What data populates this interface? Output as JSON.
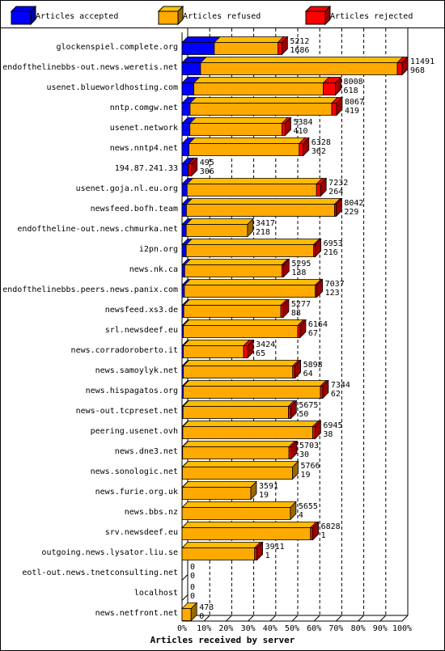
{
  "chart_data": {
    "type": "bar3d-stacked-horizontal",
    "x_label": "Articles received by server",
    "categories": [
      "glockenspiel.complete.org",
      "endofthelinebbs-out.news.weretis.net",
      "usenet.blueworldhosting.com",
      "nntp.comgw.net",
      "usenet.network",
      "news.nntp4.net",
      "194.87.241.33",
      "usenet.goja.nl.eu.org",
      "newsfeed.bofh.team",
      "endoftheline-out.news.chmurka.net",
      "i2pn.org",
      "news.nk.ca",
      "endofthelinebbs.peers.news.panix.com",
      "newsfeed.xs3.de",
      "srl.newsdeef.eu",
      "news.corradoroberto.it",
      "news.samoylyk.net",
      "news.hispagatos.org",
      "news-out.tcpreset.net",
      "peering.usenet.ovh",
      "news.dne3.net",
      "news.sonologic.net",
      "news.furie.org.uk",
      "news.bbs.nz",
      "srv.newsdeef.eu",
      "outgoing.news.lysator.liu.se",
      "eotl-out.news.tnetconsulting.net",
      "localhost",
      "news.netfront.net"
    ],
    "totals": [
      5212,
      11491,
      8008,
      8067,
      5384,
      6328,
      495,
      7232,
      8042,
      3417,
      6953,
      5295,
      7037,
      5277,
      6164,
      3424,
      5898,
      7344,
      5675,
      6945,
      5703,
      5766,
      3591,
      5655,
      6828,
      3911,
      0,
      0,
      473
    ],
    "series": [
      {
        "name": "Articles accepted",
        "color": "#0000ff",
        "values": [
          1686,
          968,
          618,
          419,
          410,
          362,
          306,
          264,
          229,
          218,
          216,
          138,
          123,
          88,
          67,
          65,
          64,
          62,
          50,
          38,
          30,
          19,
          19,
          4,
          1,
          1,
          0,
          0,
          0
        ]
      },
      {
        "name": "Articles refused",
        "color": "#ffaa00",
        "values": [
          3316,
          10273,
          6760,
          7398,
          4804,
          5756,
          39,
          6758,
          7733,
          3199,
          6657,
          5077,
          6834,
          5069,
          5977,
          3149,
          5714,
          7162,
          5505,
          6787,
          5553,
          5747,
          3572,
          5651,
          6707,
          3790,
          0,
          0,
          473
        ]
      },
      {
        "name": "Articles rejected",
        "color": "#ff0000",
        "values": [
          210,
          250,
          630,
          250,
          170,
          210,
          150,
          210,
          80,
          0,
          80,
          80,
          80,
          120,
          120,
          210,
          120,
          120,
          120,
          120,
          120,
          0,
          0,
          0,
          120,
          120,
          0,
          0,
          0
        ]
      }
    ],
    "xlim": [
      0,
      11491
    ],
    "xticks": [
      {
        "value": 0,
        "label": "0%"
      },
      {
        "value": 1149.1,
        "label": "10%"
      },
      {
        "value": 2298.2,
        "label": "20%"
      },
      {
        "value": 3447.3,
        "label": "30%"
      },
      {
        "value": 4596.4,
        "label": "40%"
      },
      {
        "value": 5745.5,
        "label": "50%"
      },
      {
        "value": 6894.6,
        "label": "60%"
      },
      {
        "value": 8043.7,
        "label": "70%"
      },
      {
        "value": 9192.8,
        "label": "80%"
      },
      {
        "value": 10341.9,
        "label": "90%"
      },
      {
        "value": 11491,
        "label": "100%"
      }
    ],
    "grid": true
  }
}
